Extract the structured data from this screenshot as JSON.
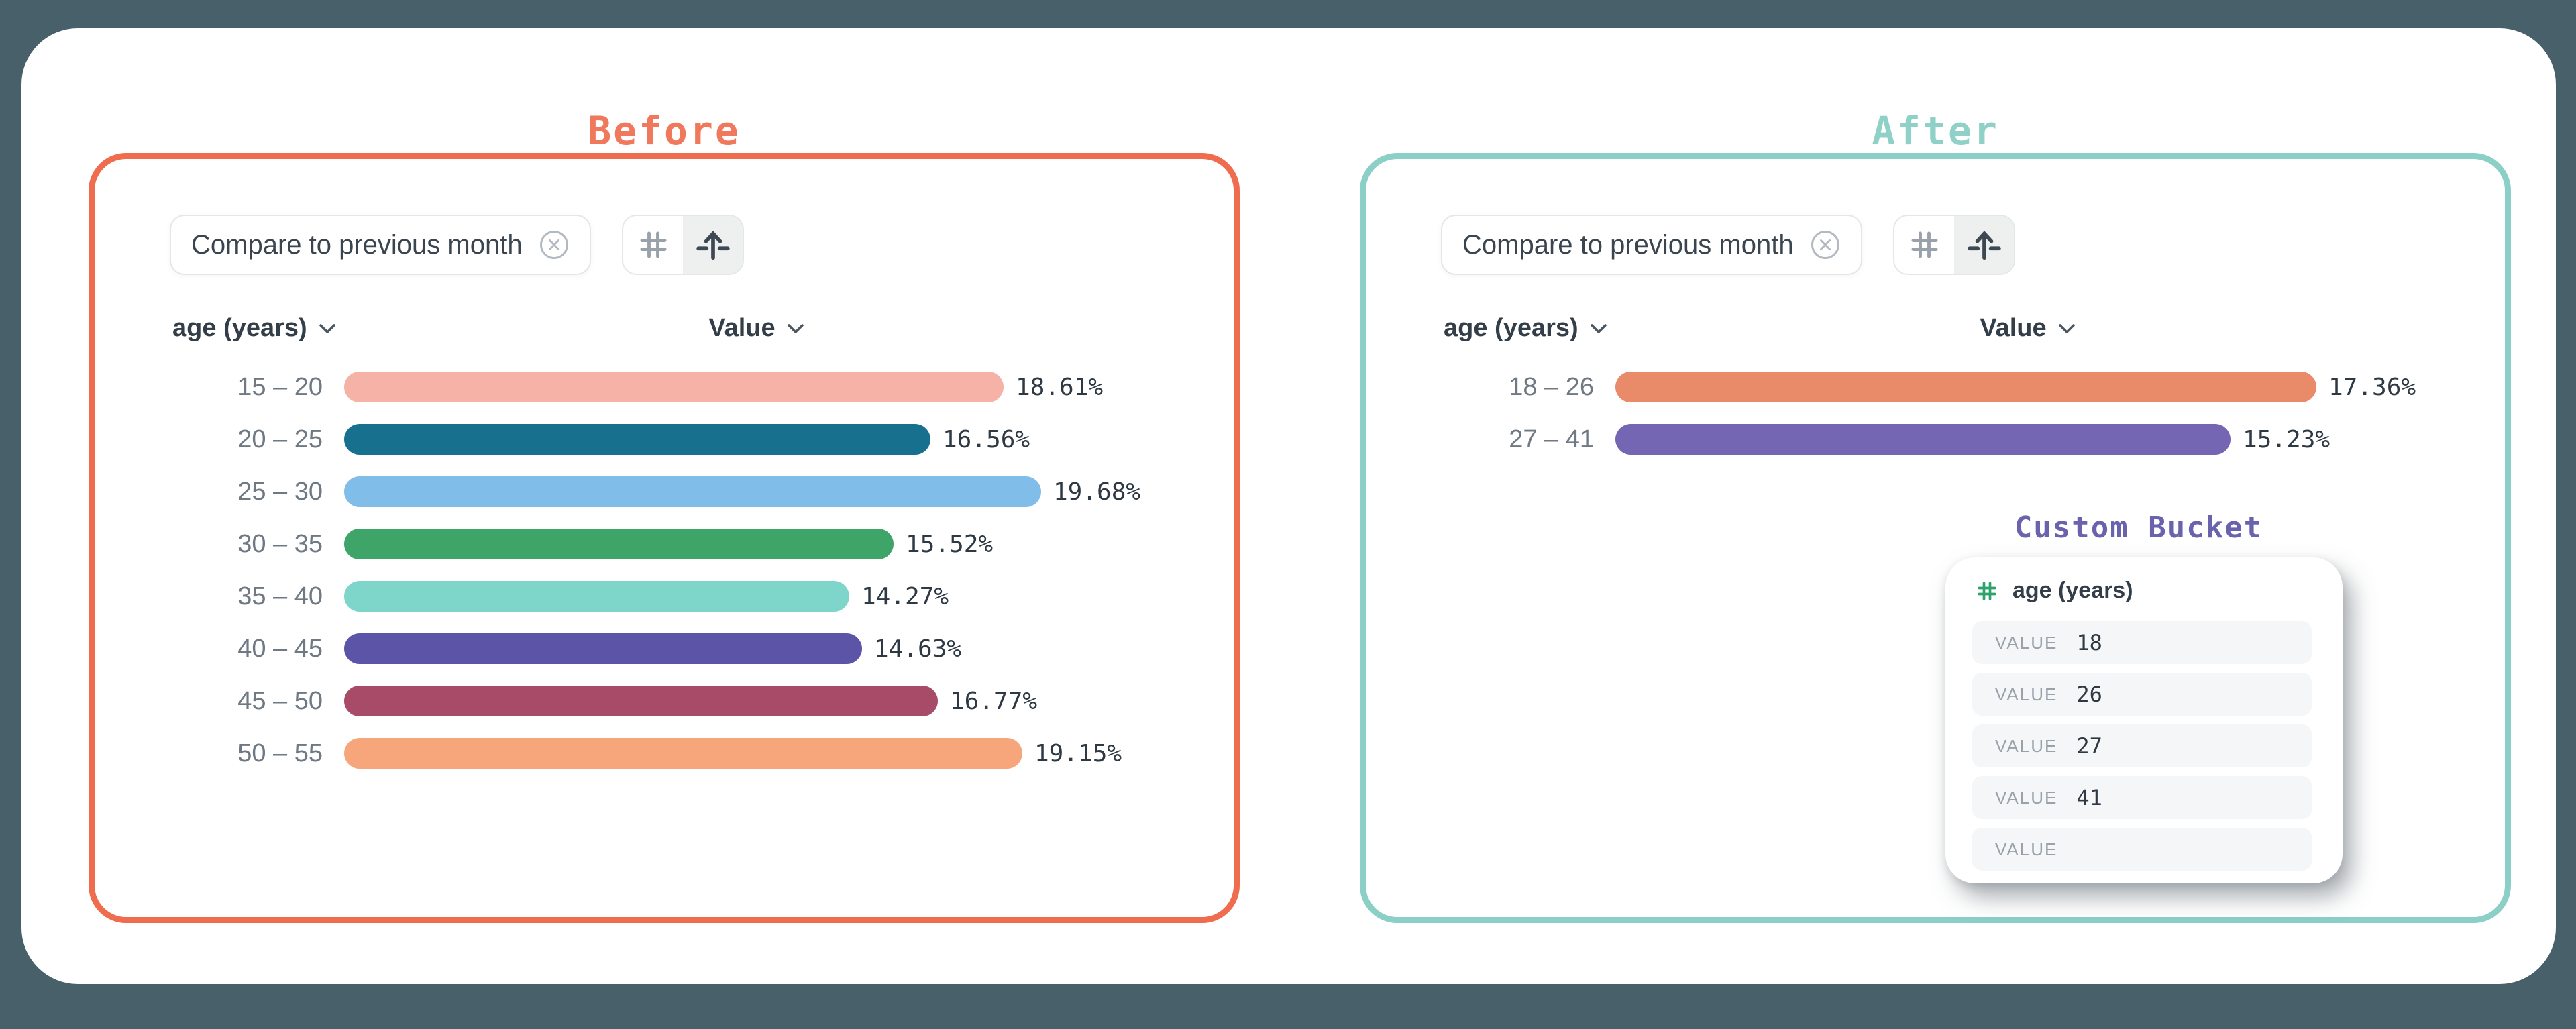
{
  "titles": {
    "before": "Before",
    "after": "After"
  },
  "filter_chip": {
    "label": "Compare to previous month"
  },
  "toolbar": {
    "buttons": [
      {
        "icon": "hash"
      },
      {
        "icon": "bucket-arrow",
        "selected": true
      }
    ]
  },
  "columns": {
    "dimension": "age (years)",
    "measure": "Value"
  },
  "chart_data": [
    {
      "type": "bar",
      "panel": "Before",
      "orientation": "horizontal",
      "categories": [
        "15 – 20",
        "20 – 25",
        "25 – 30",
        "30 – 35",
        "35 – 40",
        "40 – 45",
        "45 – 50",
        "50 – 55"
      ],
      "values": [
        18.61,
        16.56,
        19.68,
        15.52,
        14.27,
        14.63,
        16.77,
        19.15
      ],
      "value_labels": [
        "18.61%",
        "16.56%",
        "19.68%",
        "15.52%",
        "14.27%",
        "14.63%",
        "16.77%",
        "19.15%"
      ],
      "colors": [
        "#f6b2a7",
        "#17718e",
        "#80bde9",
        "#3ea468",
        "#7ed6ca",
        "#5c54a6",
        "#a84b68",
        "#f7a67b"
      ],
      "xlabel": "Value",
      "ylabel": "age (years)",
      "legend": false,
      "grid": false
    },
    {
      "type": "bar",
      "panel": "After",
      "orientation": "horizontal",
      "categories": [
        "18 – 26",
        "27 – 41"
      ],
      "values": [
        17.36,
        15.23
      ],
      "value_labels": [
        "17.36%",
        "15.23%"
      ],
      "colors": [
        "#e98a68",
        "#7466b3"
      ],
      "xlabel": "Value",
      "ylabel": "age (years)",
      "legend": false,
      "grid": false
    }
  ],
  "custom_bucket": {
    "title": "Custom Bucket",
    "field": "age (years)",
    "rows": [
      {
        "label": "VALUE",
        "value": "18"
      },
      {
        "label": "VALUE",
        "value": "26"
      },
      {
        "label": "VALUE",
        "value": "27"
      },
      {
        "label": "VALUE",
        "value": "41"
      },
      {
        "label": "VALUE",
        "value": ""
      }
    ]
  },
  "colors": {
    "background": "#47606a",
    "surface": "#ffffff",
    "before_accent": "#ef6c4e",
    "before_title": "#f0795d",
    "after_accent": "#8ccfc7",
    "after_title": "#90d1c7",
    "bucket_title_purple": "#6a62ad",
    "hash_green": "#2ba36b",
    "text_dark": "#333e49",
    "text_gray": "#6e7983",
    "chip_border": "#e3e7ea"
  }
}
